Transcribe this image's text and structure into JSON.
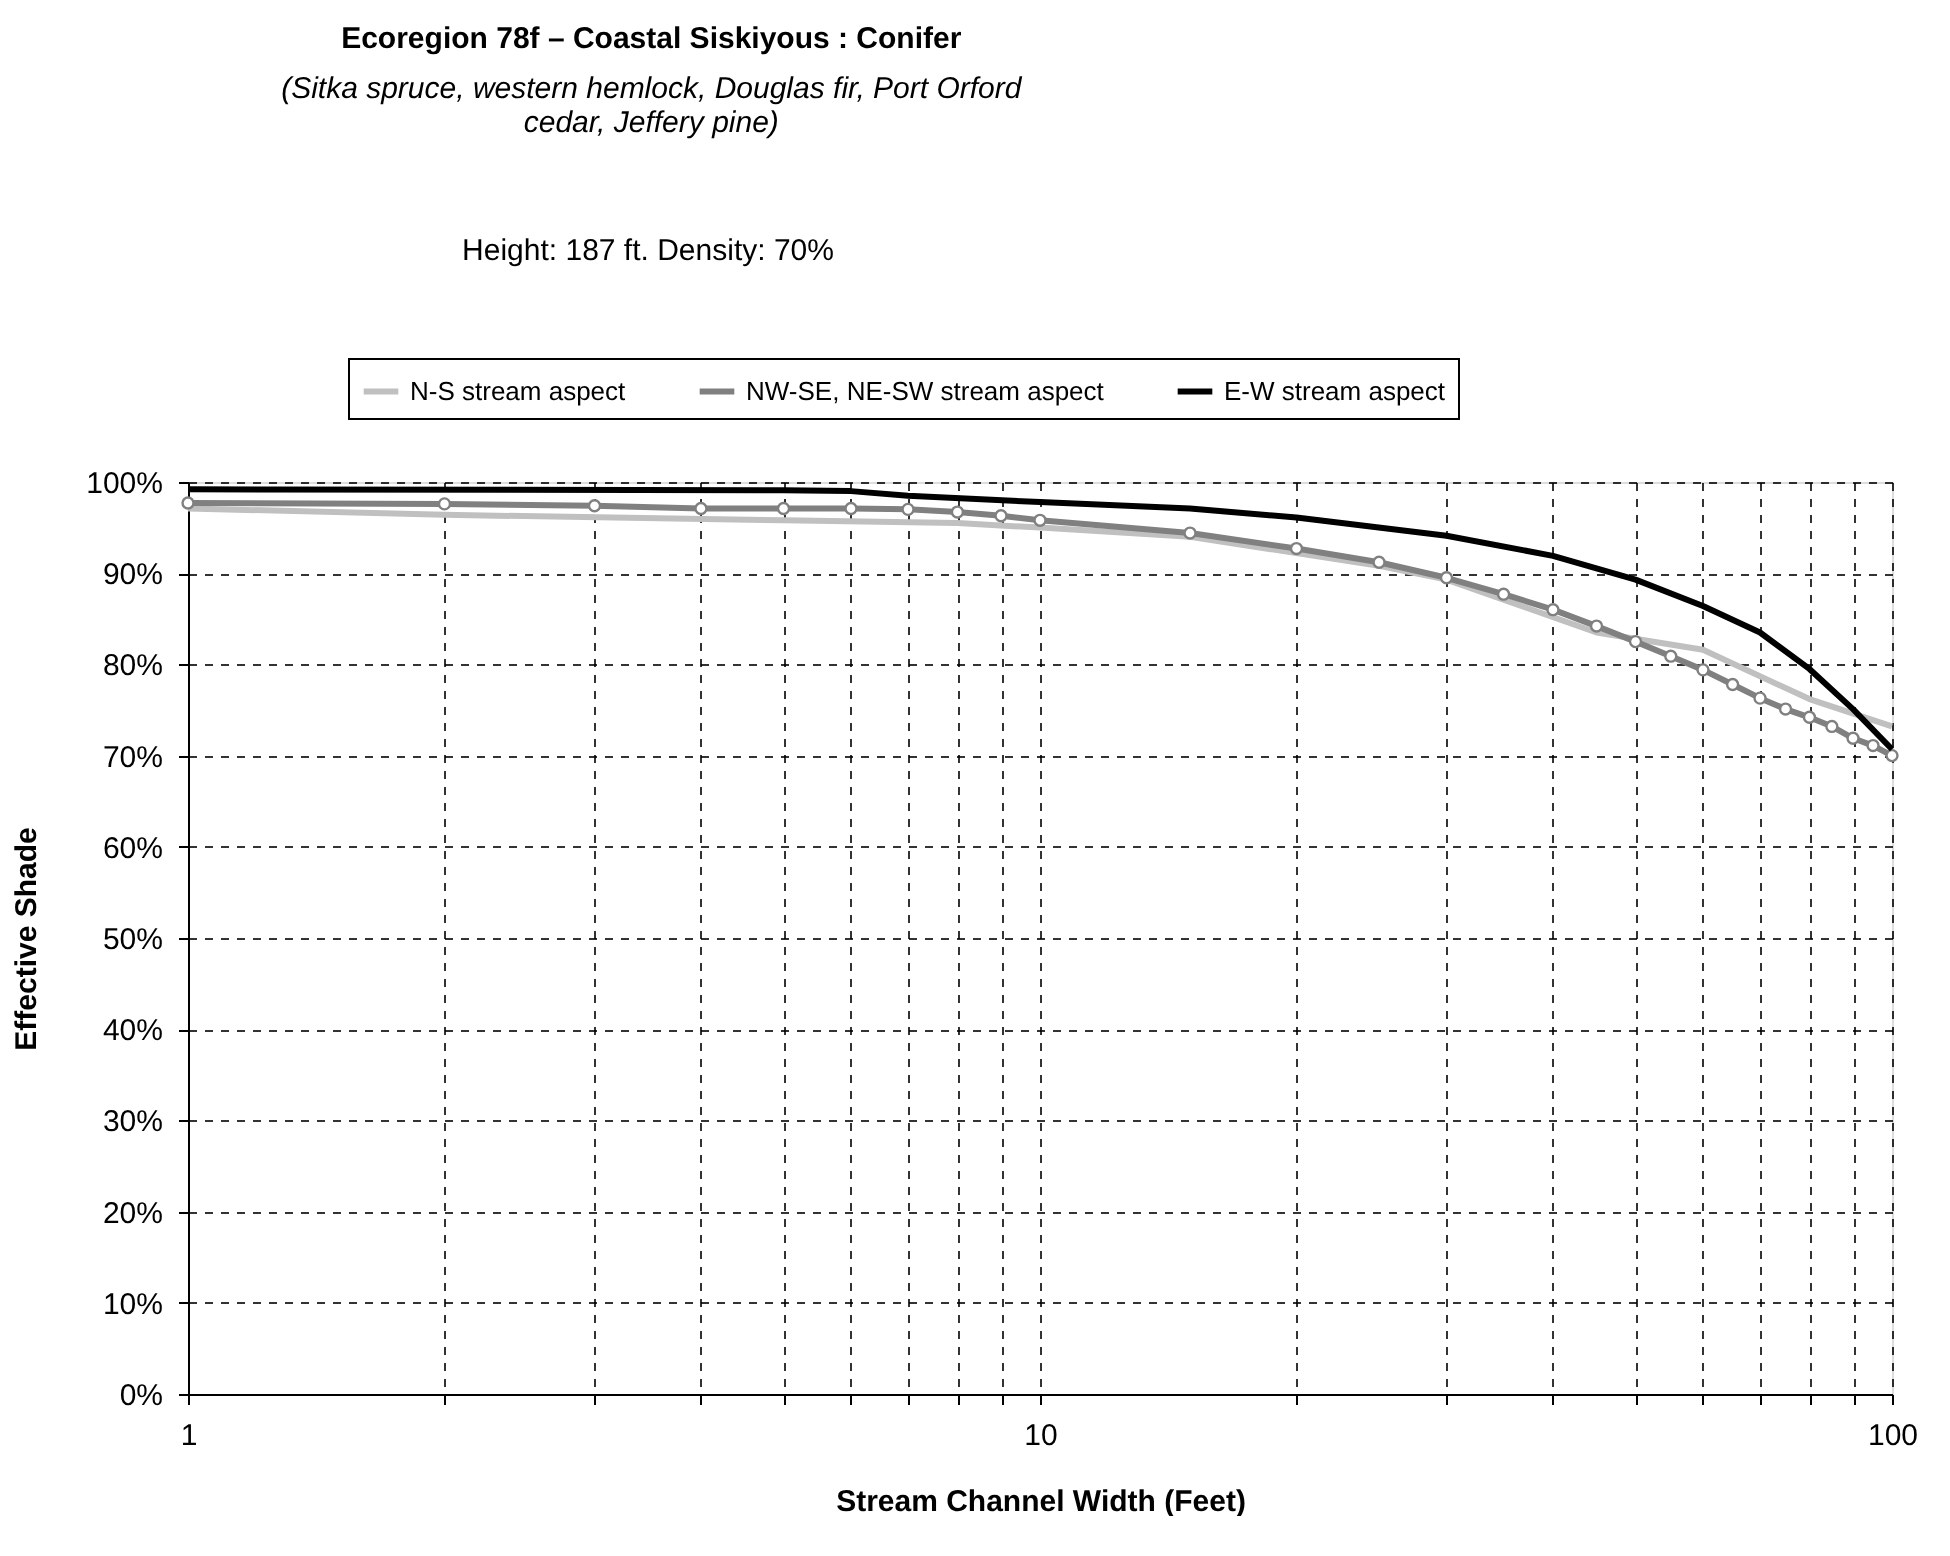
{
  "chart_data": {
    "type": "line",
    "title": "Ecoregion 78f – Coastal Siskiyous : Conifer",
    "subtitle": "(Sitka spruce, western hemlock, Douglas fir, Port Orford cedar, Jeffery pine)",
    "annotations": [
      "Height: 187 ft.  Density: 70%"
    ],
    "xlabel": "Stream Channel Width (Feet)",
    "ylabel": "Effective Shade",
    "log": "x",
    "xlim": [
      1,
      100
    ],
    "xticks": [
      1,
      {
        "value": 2,
        "label": null
      },
      {
        "value": 3,
        "label": null
      },
      {
        "value": 4,
        "label": null
      },
      {
        "value": 5,
        "label": null
      },
      {
        "value": 6,
        "label": null
      },
      {
        "value": 7,
        "label": null
      },
      {
        "value": 8,
        "label": null
      },
      {
        "value": 9,
        "label": null
      },
      10,
      {
        "value": 20,
        "label": null
      },
      {
        "value": 30,
        "label": null
      },
      {
        "value": 40,
        "label": null
      },
      {
        "value": 50,
        "label": null
      },
      {
        "value": 60,
        "label": null
      },
      {
        "value": 70,
        "label": null
      },
      {
        "value": 80,
        "label": null
      },
      {
        "value": 90,
        "label": null
      },
      100
    ],
    "ylim": [
      0,
      100
    ],
    "yticks": [
      {
        "value": 0,
        "label": "0%"
      },
      {
        "value": 10,
        "label": "10%"
      },
      {
        "value": 20,
        "label": "20%"
      },
      {
        "value": 30,
        "label": "30%"
      },
      {
        "value": 40,
        "label": "40%"
      },
      {
        "value": 50,
        "label": "50%"
      },
      {
        "value": 60,
        "label": "60%"
      },
      {
        "value": 70,
        "label": "70%"
      },
      {
        "value": 80,
        "label": "80%"
      },
      {
        "value": 90,
        "label": "90%"
      },
      {
        "value": 100,
        "label": "100%"
      }
    ],
    "grid": true,
    "legend": "top",
    "line_style": "solid",
    "series": [
      {
        "name": "N-S stream aspect",
        "color": "#c0c0c0",
        "marker": "none",
        "x": [
          1,
          2,
          5,
          8,
          10,
          15,
          20,
          25,
          30,
          45,
          60,
          80,
          100
        ],
        "values": [
          97.1,
          96.4,
          95.8,
          95.5,
          95.0,
          94.0,
          92.2,
          90.8,
          89.3,
          83.5,
          81.6,
          76.2,
          73.2
        ]
      },
      {
        "name": "NW-SE, NE-SW stream aspect",
        "color": "#808080",
        "marker": "circle",
        "x": [
          1,
          2,
          3,
          4,
          5,
          6,
          7,
          8,
          9,
          10,
          15,
          20,
          25,
          30,
          35,
          40,
          45,
          50,
          55,
          60,
          65,
          70,
          75,
          80,
          85,
          90,
          95,
          100
        ],
        "values": [
          97.7,
          97.6,
          97.4,
          97.1,
          97.1,
          97.1,
          97.0,
          96.7,
          96.3,
          95.8,
          94.4,
          92.7,
          91.2,
          89.5,
          87.7,
          86.0,
          84.2,
          82.5,
          80.9,
          79.4,
          77.8,
          76.3,
          75.1,
          74.2,
          73.2,
          71.9,
          71.1,
          70.0
        ]
      },
      {
        "name": "E-W stream aspect",
        "color": "#000000",
        "marker": "none",
        "x": [
          1,
          5,
          6,
          7,
          10,
          15,
          20,
          30,
          40,
          50,
          60,
          70,
          80,
          90,
          100
        ],
        "values": [
          99.2,
          99.1,
          99.0,
          98.5,
          97.8,
          97.1,
          96.1,
          94.1,
          91.9,
          89.3,
          86.4,
          83.5,
          79.5,
          75.1,
          70.7
        ]
      }
    ]
  }
}
